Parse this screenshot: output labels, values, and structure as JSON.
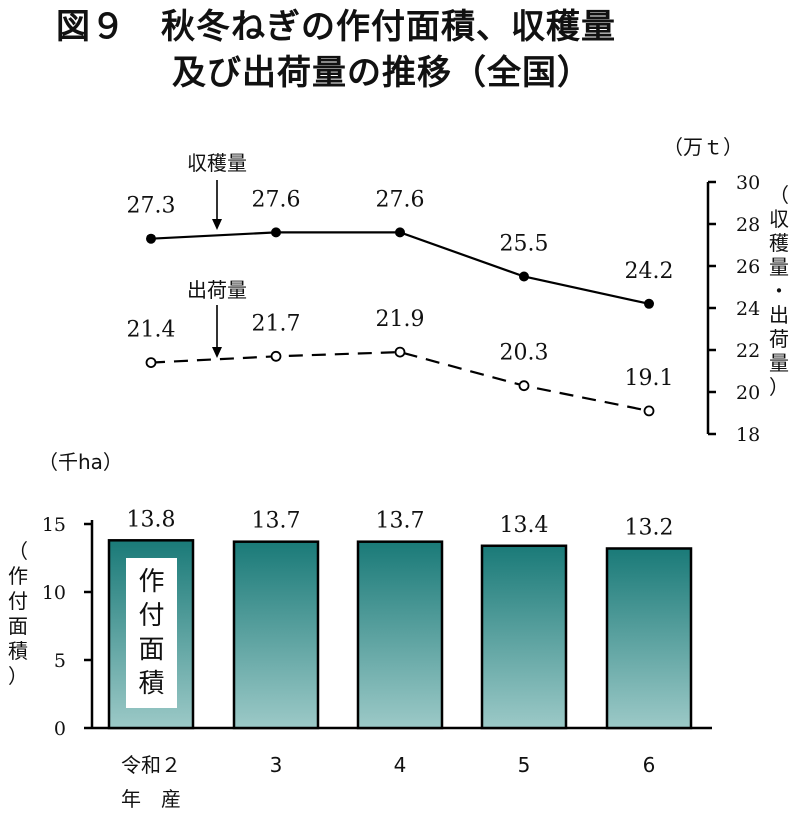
{
  "title_line1": "図９　秋冬ねぎの作付面積、収穫量",
  "title_line2": "及び出荷量の推移（全国）",
  "chart_data": [
    {
      "type": "line",
      "x": [
        "令和２",
        "3",
        "4",
        "5",
        "6"
      ],
      "series": [
        {
          "name": "収穫量",
          "values": [
            27.3,
            27.6,
            27.6,
            25.5,
            24.2
          ],
          "style": "solid",
          "labels": [
            "27.3",
            "27.6",
            "27.6",
            "25.5",
            "24.2"
          ]
        },
        {
          "name": "出荷量",
          "values": [
            21.4,
            21.7,
            21.9,
            20.3,
            19.1
          ],
          "style": "dashed",
          "labels": [
            "21.4",
            "21.7",
            "21.9",
            "20.3",
            "19.1"
          ]
        }
      ],
      "y_axis": {
        "position": "right",
        "unit": "（万ｔ）",
        "label": [
          "（",
          "収",
          "穫",
          "量",
          "・",
          "出",
          "荷",
          "量",
          "）"
        ],
        "ylim": [
          18,
          30
        ],
        "ticks": [
          "18",
          "20",
          "22",
          "24",
          "26",
          "28",
          "30"
        ]
      }
    },
    {
      "type": "bar",
      "categories": [
        "令和２",
        "3",
        "4",
        "5",
        "6"
      ],
      "values": [
        13.8,
        13.7,
        13.7,
        13.4,
        13.2
      ],
      "value_labels": [
        "13.8",
        "13.7",
        "13.7",
        "13.4",
        "13.2"
      ],
      "series_name": [
        "作",
        "付",
        "面",
        "積"
      ],
      "y_axis": {
        "position": "left",
        "unit": "（千ha）",
        "label": [
          "（",
          "作",
          "付",
          "面",
          "積",
          "）"
        ],
        "ylim": [
          0,
          15
        ],
        "ticks": [
          "0",
          "5",
          "10",
          "15"
        ]
      },
      "x_axis": {
        "labels": [
          "令和２",
          "3",
          "4",
          "5",
          "6"
        ],
        "sublabel": "年　産"
      },
      "colors": {
        "bar_top": "#1a7a78",
        "bar_bottom": "#9cc9c7",
        "outline": "#000000"
      }
    }
  ]
}
